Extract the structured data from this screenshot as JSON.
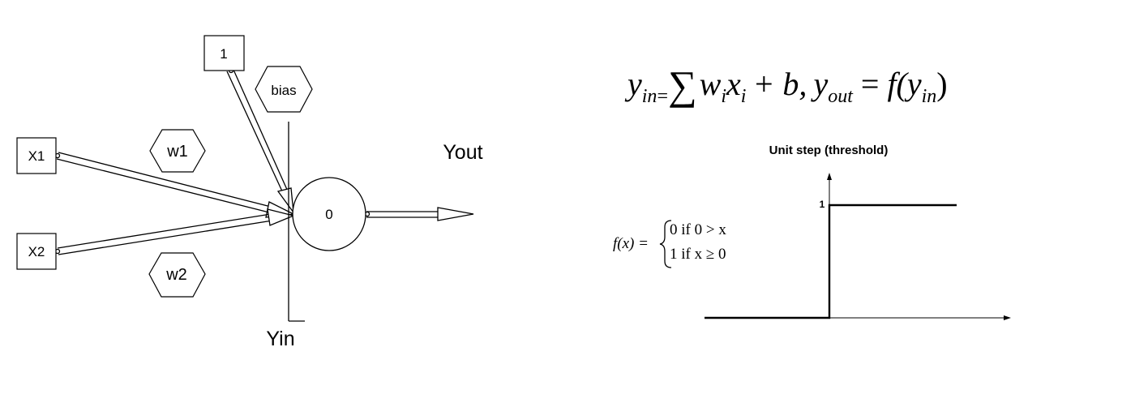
{
  "perceptron": {
    "inputs": [
      {
        "id": "x1",
        "label": "X1"
      },
      {
        "id": "x2",
        "label": "X2"
      }
    ],
    "bias_input": {
      "label": "1"
    },
    "weights": [
      {
        "id": "w1",
        "label": "w1"
      },
      {
        "id": "w2",
        "label": "w2"
      }
    ],
    "bias_label": "bias",
    "node_value": "0",
    "yin_label": "Yin",
    "yout_label": "Yout"
  },
  "formula": {
    "y": "y",
    "in_sub": "in",
    "eq_small": "=",
    "sum": "∑",
    "w": "w",
    "i1": "i",
    "x": "x",
    "i2": "i",
    "plus_b": "+ b,",
    "yout_y": "y",
    "out_sub": "out",
    "eq": "=",
    "f_open": "f(y",
    "in_sub2": "in",
    "close": ")"
  },
  "step_function": {
    "title": "Unit step (threshold)",
    "tick_1": "1",
    "definition": {
      "lhs": "f(x) =",
      "case_0": "0 if  0 > x",
      "case_1": "1 if  x ≥ 0"
    }
  }
}
